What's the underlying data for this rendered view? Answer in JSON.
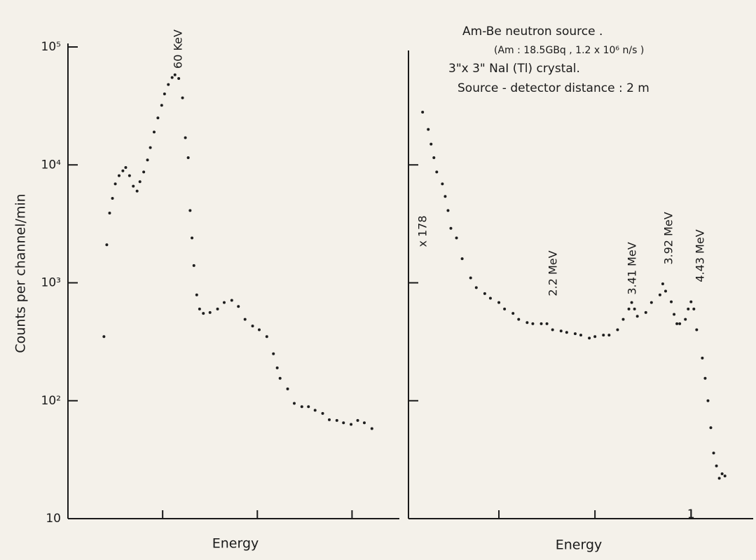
{
  "chart_data": [
    {
      "type": "scatter",
      "ylabel": "Counts per channel/min",
      "xlabel": "Energy",
      "log_scale": true,
      "color": "#1e1e1e",
      "xlim": [
        0,
        3.5
      ],
      "xticks": [
        {
          "value": 1,
          "label": null
        },
        {
          "value": 2,
          "label": null
        },
        {
          "value": 3,
          "label": null
        }
      ],
      "ylim": [
        10,
        100000
      ],
      "yticks": [
        {
          "value": 100000,
          "label": "10⁵"
        },
        {
          "value": 10000,
          "label": "10⁴"
        },
        {
          "value": 1000,
          "label": "10³"
        },
        {
          "value": 100,
          "label": "10²"
        },
        10
      ],
      "annotations": [
        "60 KeV"
      ],
      "x": [
        0.38,
        0.41,
        0.44,
        0.47,
        0.5,
        0.54,
        0.58,
        0.61,
        0.65,
        0.69,
        0.73,
        0.76,
        0.8,
        0.84,
        0.87,
        0.91,
        0.95,
        0.99,
        1.02,
        1.06,
        1.1,
        1.13,
        1.17,
        1.21,
        1.24,
        1.27,
        1.29,
        1.31,
        1.33,
        1.36,
        1.39,
        1.43,
        1.5,
        1.58,
        1.65,
        1.73,
        1.8,
        1.87,
        1.95,
        2.02,
        2.1,
        2.17,
        2.21,
        2.24,
        2.32,
        2.39,
        2.47,
        2.54,
        2.61,
        2.69,
        2.76,
        2.84,
        2.91,
        2.99,
        3.06,
        3.13,
        3.21
      ],
      "values": [
        350,
        2100,
        3900,
        5200,
        6900,
        8100,
        8900,
        9500,
        8100,
        6600,
        6000,
        7200,
        8700,
        11000,
        14000,
        19000,
        25000,
        32000,
        40000,
        48000,
        55000,
        58000,
        54000,
        37000,
        17000,
        11500,
        4100,
        2400,
        1400,
        790,
        600,
        550,
        560,
        600,
        680,
        710,
        630,
        490,
        430,
        400,
        350,
        250,
        190,
        155,
        126,
        95,
        89,
        89,
        83,
        78,
        69,
        68,
        65,
        63,
        68,
        65,
        58
      ]
    },
    {
      "type": "scatter",
      "xlabel": "Energy",
      "log_scale": true,
      "color": "#1e1e1e",
      "xlim": [
        0,
        1.22
      ],
      "xticks": [
        {
          "value": 0.32,
          "label": null
        },
        {
          "value": 0.66,
          "label": null
        },
        1
      ],
      "ylim": [
        10,
        100000
      ],
      "yticks": [
        {
          "value": 10000,
          "label": null
        },
        {
          "value": 1000,
          "label": null
        },
        {
          "value": 100,
          "label": null
        }
      ],
      "annotations": [
        "x 178",
        "2.2 MeV",
        "3.41 MeV",
        "3.92 MeV",
        "4.43 MeV"
      ],
      "text_block": [
        "Am-Be  neutron  source .",
        "(Am : 18.5GBq , 1.2 x 10⁶ n/s )",
        "3\"x 3\" NaI (Tl) crystal.",
        "Source - detector  distance : 2 m"
      ],
      "x": [
        0.05,
        0.07,
        0.08,
        0.09,
        0.1,
        0.12,
        0.13,
        0.14,
        0.15,
        0.17,
        0.19,
        0.22,
        0.24,
        0.27,
        0.29,
        0.32,
        0.34,
        0.37,
        0.39,
        0.42,
        0.44,
        0.47,
        0.49,
        0.51,
        0.54,
        0.56,
        0.59,
        0.61,
        0.64,
        0.66,
        0.69,
        0.71,
        0.74,
        0.76,
        0.78,
        0.79,
        0.8,
        0.81,
        0.84,
        0.86,
        0.89,
        0.9,
        0.91,
        0.93,
        0.94,
        0.95,
        0.96,
        0.98,
        0.99,
        1.0,
        1.01,
        1.02,
        1.04,
        1.05,
        1.06,
        1.07,
        1.08,
        1.09,
        1.1,
        1.11,
        1.12
      ],
      "values": [
        28000,
        20000,
        15000,
        11500,
        8700,
        6900,
        5400,
        4100,
        2900,
        2400,
        1600,
        1100,
        910,
        810,
        740,
        680,
        600,
        550,
        490,
        460,
        450,
        450,
        450,
        400,
        390,
        380,
        370,
        360,
        340,
        350,
        360,
        360,
        400,
        490,
        600,
        680,
        600,
        520,
        560,
        680,
        790,
        980,
        850,
        690,
        540,
        450,
        450,
        490,
        600,
        690,
        600,
        400,
        230,
        155,
        100,
        59,
        36,
        28,
        22,
        24,
        23
      ]
    }
  ]
}
